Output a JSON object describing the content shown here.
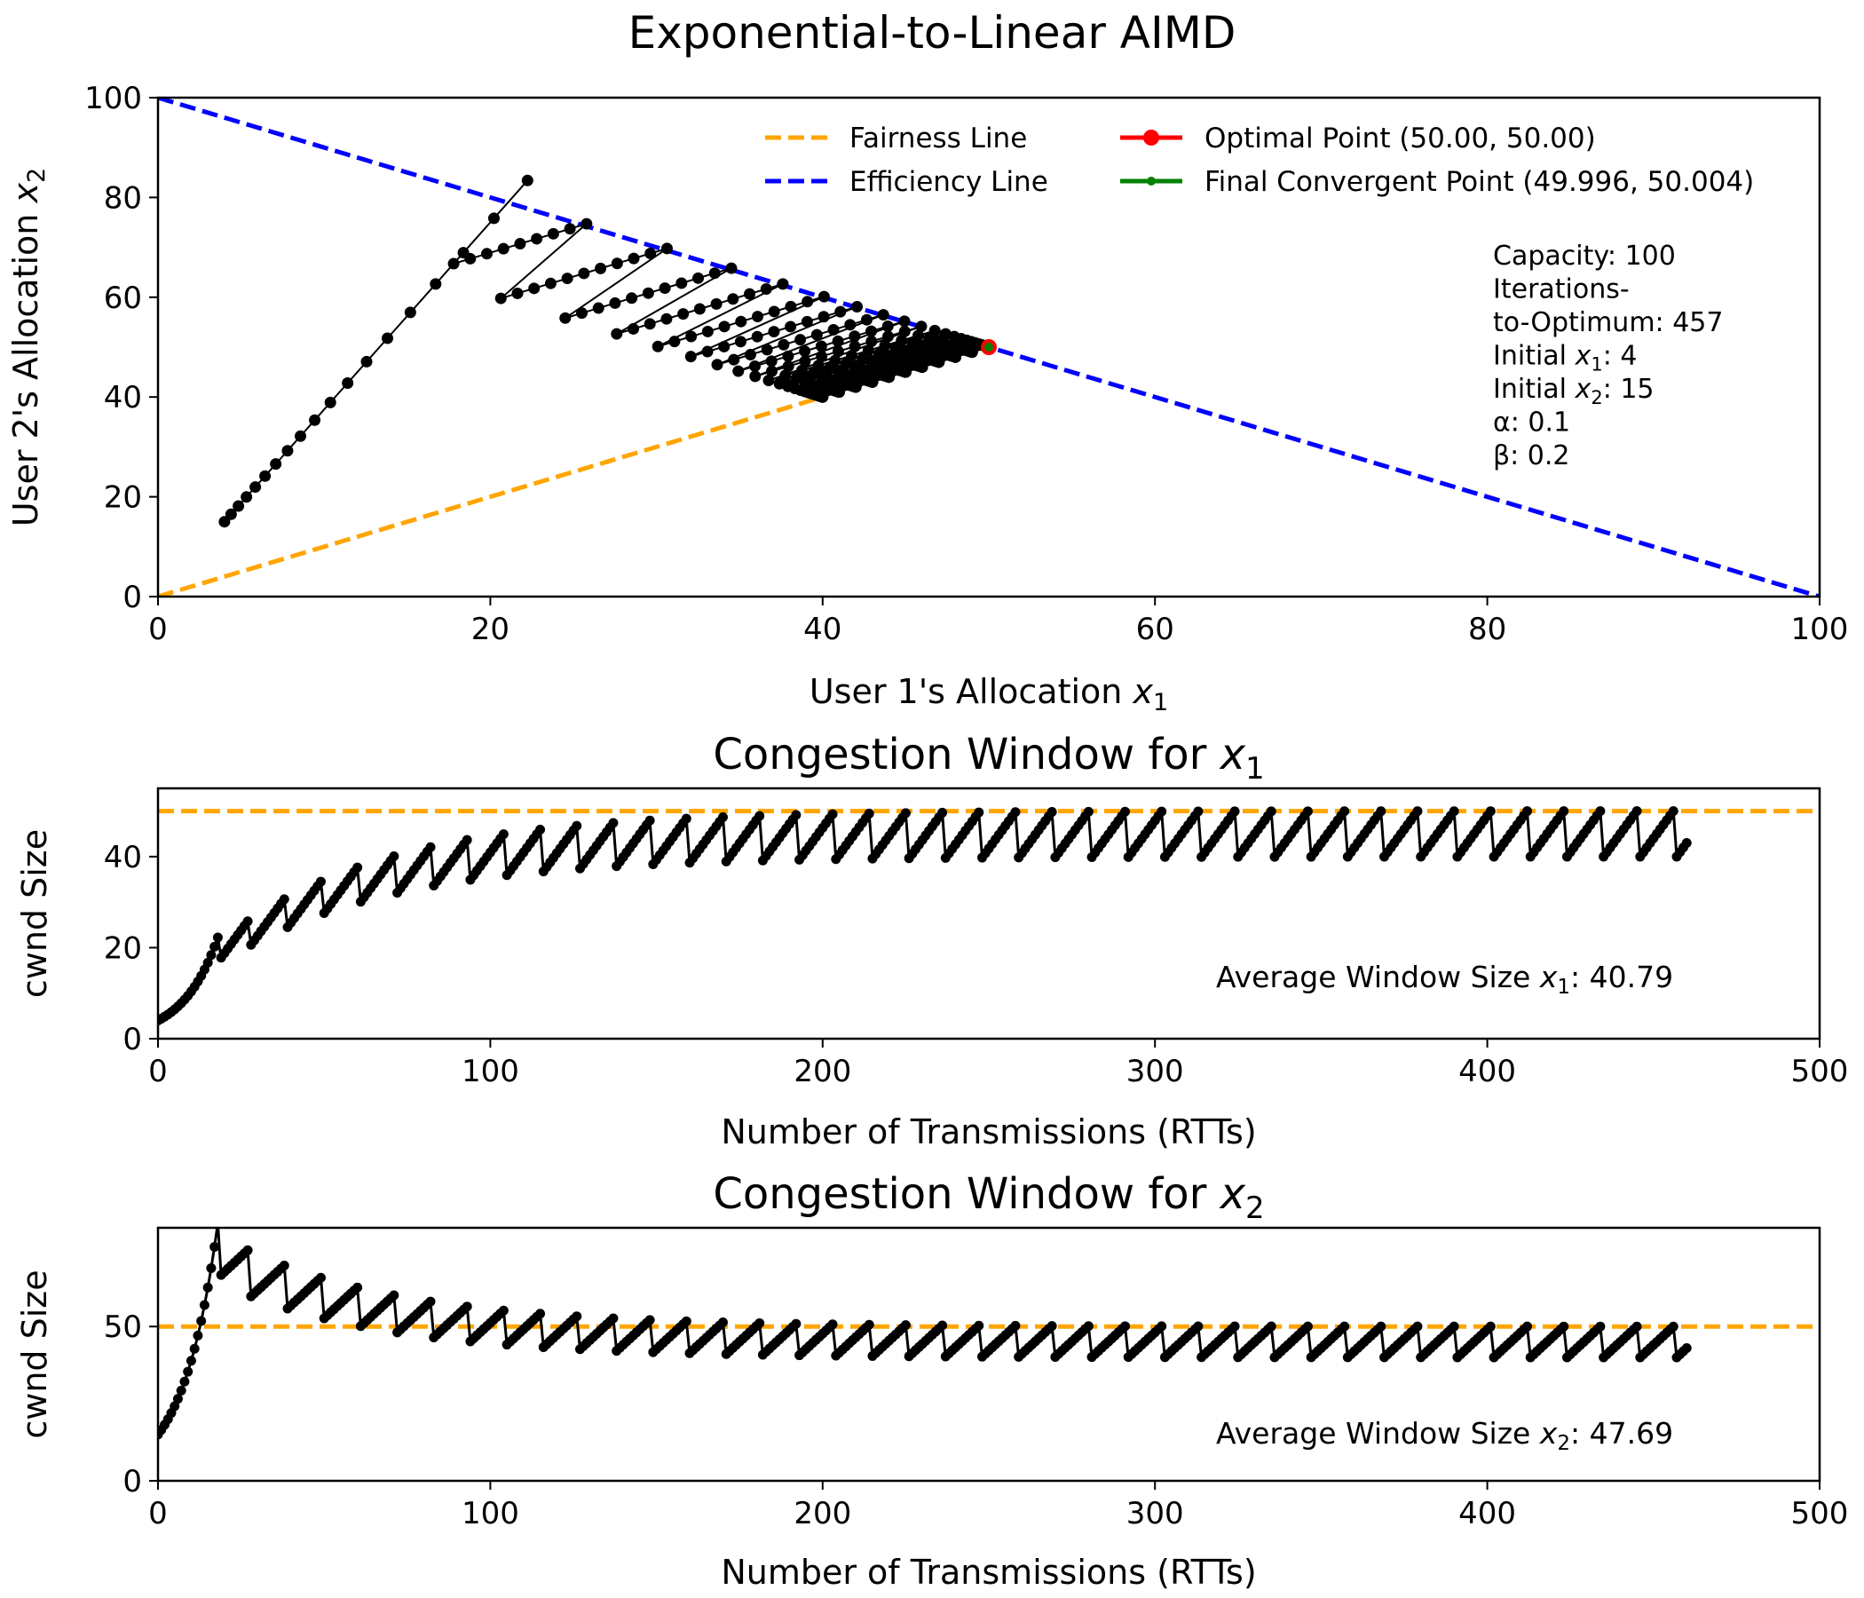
{
  "figure": {
    "title": "Exponential-to-Linear AIMD"
  },
  "chart_data": [
    {
      "id": "phase",
      "type": "line",
      "title": "",
      "xlabel": "User 1's Allocation x₁",
      "ylabel": "User 2's Allocation x₂",
      "xlim": [
        0,
        100
      ],
      "ylim": [
        0,
        100
      ],
      "xticks": [
        0,
        20,
        40,
        60,
        80,
        100
      ],
      "yticks": [
        0,
        20,
        40,
        60,
        80,
        100
      ],
      "legend_position": "top-right",
      "legend": [
        {
          "label": "Fairness Line",
          "color": "#FFA500",
          "style": "dashed"
        },
        {
          "label": "Efficiency Line",
          "color": "#0000FF",
          "style": "dashed"
        },
        {
          "label": "Optimal Point (50.00, 50.00)",
          "color": "#FF0000",
          "style": "line-marker"
        },
        {
          "label": "Final Convergent Point (49.996, 50.004)",
          "color": "#008000",
          "style": "line-small-marker"
        }
      ],
      "fairness_line": [
        [
          0,
          0
        ],
        [
          40,
          40
        ]
      ],
      "efficiency_line": [
        [
          0,
          100
        ],
        [
          100,
          0
        ]
      ],
      "optimal_point": [
        50.0,
        50.0
      ],
      "final_point": [
        49.996,
        50.004
      ],
      "annotation": [
        "Capacity: 100",
        "Iterations-",
        "to-Optimum: 457",
        "Initial x₁: 4",
        "Initial x₂: 15",
        "α: 0.1",
        "β: 0.2"
      ],
      "trajectory_color": "#000000"
    },
    {
      "id": "cwnd1",
      "type": "line",
      "title": "Congestion Window for x₁",
      "xlabel": "Number of Transmissions (RTTs)",
      "ylabel": "cwnd Size",
      "xlim": [
        0,
        500
      ],
      "ylim": [
        0,
        55
      ],
      "xticks": [
        0,
        100,
        200,
        300,
        400,
        500
      ],
      "yticks": [
        0,
        20,
        40
      ],
      "reference_line": {
        "value": 50,
        "color": "#FFA500"
      },
      "annotation": "Average Window Size x₁: 40.79",
      "series_color": "#000000"
    },
    {
      "id": "cwnd2",
      "type": "line",
      "title": "Congestion Window for x₂",
      "xlabel": "Number of Transmissions (RTTs)",
      "ylabel": "cwnd Size",
      "xlim": [
        0,
        500
      ],
      "ylim": [
        0,
        82
      ],
      "xticks": [
        0,
        100,
        200,
        300,
        400,
        500
      ],
      "yticks": [
        0,
        50
      ],
      "reference_line": {
        "value": 50,
        "color": "#FFA500"
      },
      "annotation": "Average Window Size x₂: 47.69",
      "series_color": "#000000"
    }
  ]
}
